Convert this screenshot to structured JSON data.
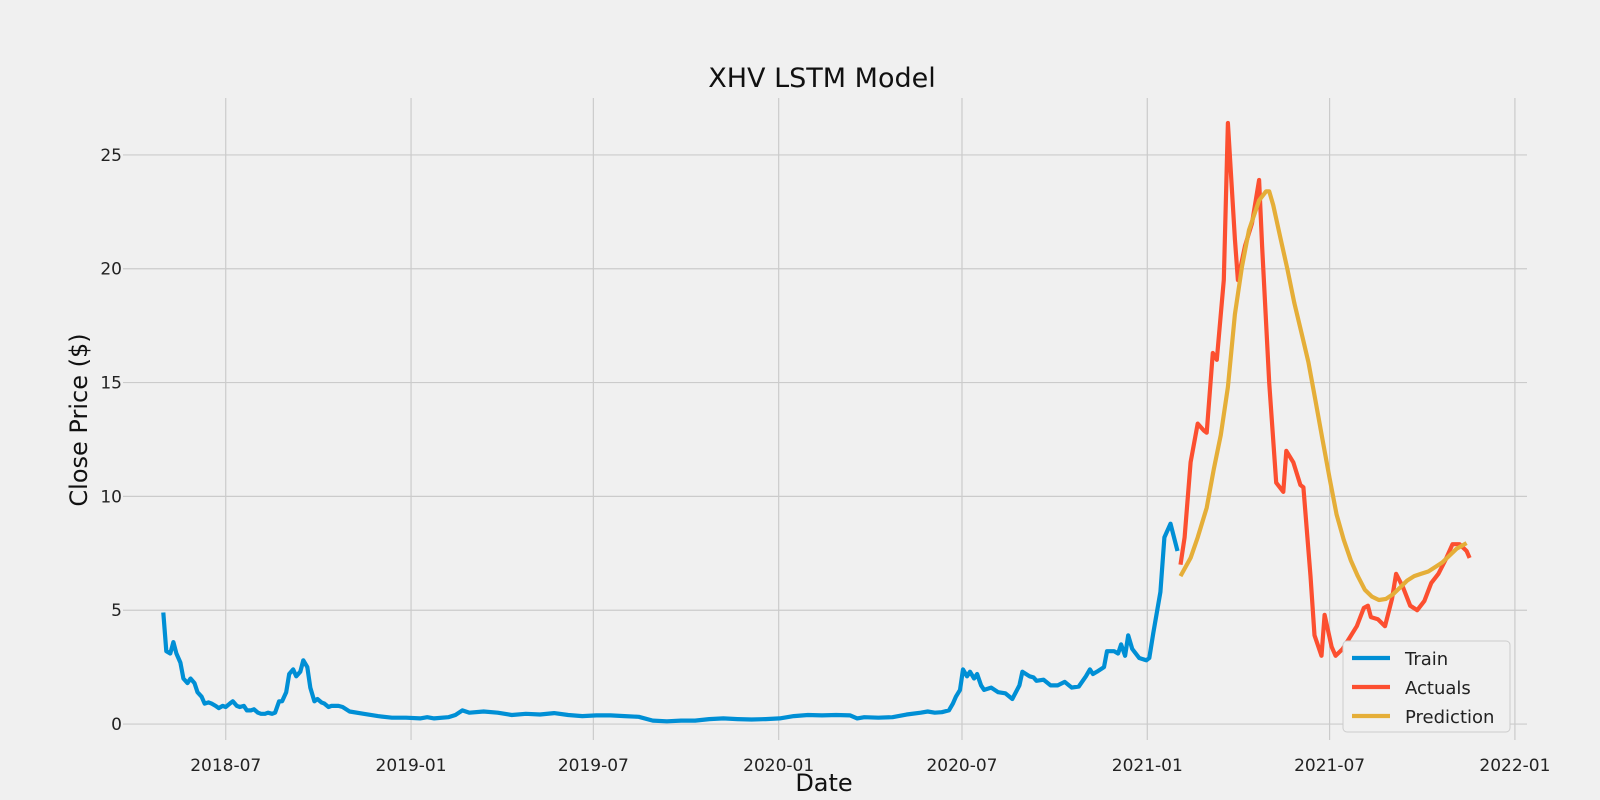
{
  "chart_data": {
    "type": "line",
    "title": "XHV LSTM Model",
    "xlabel": "Date",
    "ylabel": "Close Price ($)",
    "x_ticks": [
      "2018-07",
      "2019-01",
      "2019-07",
      "2020-01",
      "2020-07",
      "2021-01",
      "2021-07",
      "2022-01"
    ],
    "y_ticks": [
      0,
      5,
      10,
      15,
      20,
      25
    ],
    "xlim": [
      "2018-03-21",
      "2022-01-13"
    ],
    "ylim": [
      -0.7,
      27.5
    ],
    "grid": true,
    "legend_position": "lower-right",
    "series": [
      {
        "name": "Train",
        "color": "#008fd5",
        "points": [
          [
            "2018-04-30",
            4.9
          ],
          [
            "2018-05-03",
            3.2
          ],
          [
            "2018-05-07",
            3.1
          ],
          [
            "2018-05-10",
            3.6
          ],
          [
            "2018-05-13",
            3.1
          ],
          [
            "2018-05-17",
            2.7
          ],
          [
            "2018-05-20",
            2.0
          ],
          [
            "2018-05-24",
            1.8
          ],
          [
            "2018-05-27",
            2.0
          ],
          [
            "2018-05-31",
            1.8
          ],
          [
            "2018-06-03",
            1.4
          ],
          [
            "2018-06-07",
            1.2
          ],
          [
            "2018-06-10",
            0.9
          ],
          [
            "2018-06-14",
            0.95
          ],
          [
            "2018-06-17",
            0.9
          ],
          [
            "2018-06-21",
            0.8
          ],
          [
            "2018-06-24",
            0.7
          ],
          [
            "2018-06-28",
            0.8
          ],
          [
            "2018-07-01",
            0.75
          ],
          [
            "2018-07-05",
            0.9
          ],
          [
            "2018-07-08",
            1.0
          ],
          [
            "2018-07-12",
            0.8
          ],
          [
            "2018-07-15",
            0.75
          ],
          [
            "2018-07-19",
            0.8
          ],
          [
            "2018-07-22",
            0.6
          ],
          [
            "2018-07-26",
            0.6
          ],
          [
            "2018-07-29",
            0.65
          ],
          [
            "2018-08-02",
            0.5
          ],
          [
            "2018-08-05",
            0.45
          ],
          [
            "2018-08-09",
            0.45
          ],
          [
            "2018-08-12",
            0.5
          ],
          [
            "2018-08-16",
            0.45
          ],
          [
            "2018-08-19",
            0.5
          ],
          [
            "2018-08-23",
            1.0
          ],
          [
            "2018-08-26",
            1.0
          ],
          [
            "2018-08-30",
            1.4
          ],
          [
            "2018-09-02",
            2.2
          ],
          [
            "2018-09-06",
            2.4
          ],
          [
            "2018-09-09",
            2.1
          ],
          [
            "2018-09-13",
            2.3
          ],
          [
            "2018-09-16",
            2.8
          ],
          [
            "2018-09-20",
            2.5
          ],
          [
            "2018-09-23",
            1.6
          ],
          [
            "2018-09-27",
            1.0
          ],
          [
            "2018-09-30",
            1.1
          ],
          [
            "2018-10-04",
            0.95
          ],
          [
            "2018-10-07",
            0.9
          ],
          [
            "2018-10-11",
            0.75
          ],
          [
            "2018-10-14",
            0.8
          ],
          [
            "2018-10-18",
            0.8
          ],
          [
            "2018-10-21",
            0.8
          ],
          [
            "2018-10-25",
            0.75
          ],
          [
            "2018-11-01",
            0.55
          ],
          [
            "2018-11-15",
            0.45
          ],
          [
            "2018-11-29",
            0.35
          ],
          [
            "2018-12-13",
            0.28
          ],
          [
            "2018-12-27",
            0.28
          ],
          [
            "2019-01-10",
            0.25
          ],
          [
            "2019-01-17",
            0.3
          ],
          [
            "2019-01-24",
            0.25
          ],
          [
            "2019-02-07",
            0.3
          ],
          [
            "2019-02-14",
            0.4
          ],
          [
            "2019-02-21",
            0.6
          ],
          [
            "2019-02-28",
            0.5
          ],
          [
            "2019-03-14",
            0.55
          ],
          [
            "2019-03-28",
            0.5
          ],
          [
            "2019-04-11",
            0.4
          ],
          [
            "2019-04-25",
            0.45
          ],
          [
            "2019-05-09",
            0.42
          ],
          [
            "2019-05-23",
            0.48
          ],
          [
            "2019-06-06",
            0.4
          ],
          [
            "2019-06-20",
            0.35
          ],
          [
            "2019-07-04",
            0.38
          ],
          [
            "2019-07-18",
            0.38
          ],
          [
            "2019-08-01",
            0.35
          ],
          [
            "2019-08-15",
            0.32
          ],
          [
            "2019-08-29",
            0.15
          ],
          [
            "2019-09-12",
            0.12
          ],
          [
            "2019-09-26",
            0.15
          ],
          [
            "2019-10-10",
            0.15
          ],
          [
            "2019-10-24",
            0.22
          ],
          [
            "2019-11-07",
            0.25
          ],
          [
            "2019-11-21",
            0.22
          ],
          [
            "2019-12-05",
            0.2
          ],
          [
            "2019-12-19",
            0.22
          ],
          [
            "2020-01-02",
            0.25
          ],
          [
            "2020-01-16",
            0.35
          ],
          [
            "2020-01-30",
            0.4
          ],
          [
            "2020-02-13",
            0.38
          ],
          [
            "2020-02-27",
            0.4
          ],
          [
            "2020-03-12",
            0.38
          ],
          [
            "2020-03-19",
            0.25
          ],
          [
            "2020-03-26",
            0.3
          ],
          [
            "2020-04-09",
            0.28
          ],
          [
            "2020-04-23",
            0.3
          ],
          [
            "2020-05-07",
            0.42
          ],
          [
            "2020-05-21",
            0.5
          ],
          [
            "2020-05-28",
            0.55
          ],
          [
            "2020-06-04",
            0.5
          ],
          [
            "2020-06-11",
            0.52
          ],
          [
            "2020-06-18",
            0.6
          ],
          [
            "2020-06-22",
            0.9
          ],
          [
            "2020-06-25",
            1.2
          ],
          [
            "2020-06-29",
            1.5
          ],
          [
            "2020-07-02",
            2.4
          ],
          [
            "2020-07-06",
            2.1
          ],
          [
            "2020-07-09",
            2.3
          ],
          [
            "2020-07-13",
            2.0
          ],
          [
            "2020-07-16",
            2.2
          ],
          [
            "2020-07-20",
            1.7
          ],
          [
            "2020-07-23",
            1.5
          ],
          [
            "2020-07-30",
            1.6
          ],
          [
            "2020-08-06",
            1.4
          ],
          [
            "2020-08-13",
            1.35
          ],
          [
            "2020-08-20",
            1.1
          ],
          [
            "2020-08-27",
            1.7
          ],
          [
            "2020-08-30",
            2.3
          ],
          [
            "2020-09-06",
            2.1
          ],
          [
            "2020-09-10",
            2.05
          ],
          [
            "2020-09-13",
            1.9
          ],
          [
            "2020-09-20",
            1.95
          ],
          [
            "2020-09-27",
            1.7
          ],
          [
            "2020-10-04",
            1.7
          ],
          [
            "2020-10-11",
            1.85
          ],
          [
            "2020-10-18",
            1.6
          ],
          [
            "2020-10-25",
            1.65
          ],
          [
            "2020-11-01",
            2.1
          ],
          [
            "2020-11-05",
            2.4
          ],
          [
            "2020-11-08",
            2.2
          ],
          [
            "2020-11-12",
            2.3
          ],
          [
            "2020-11-19",
            2.5
          ],
          [
            "2020-11-22",
            3.2
          ],
          [
            "2020-11-29",
            3.2
          ],
          [
            "2020-12-03",
            3.1
          ],
          [
            "2020-12-06",
            3.5
          ],
          [
            "2020-12-10",
            3.0
          ],
          [
            "2020-12-13",
            3.9
          ],
          [
            "2020-12-17",
            3.3
          ],
          [
            "2020-12-24",
            2.9
          ],
          [
            "2020-12-31",
            2.8
          ],
          [
            "2021-01-03",
            2.9
          ],
          [
            "2021-01-07",
            4.0
          ],
          [
            "2021-01-14",
            5.8
          ],
          [
            "2021-01-18",
            8.2
          ],
          [
            "2021-01-24",
            8.8
          ],
          [
            "2021-01-31",
            7.6
          ]
        ]
      },
      {
        "name": "Actuals",
        "color": "#fc4f30",
        "points": [
          [
            "2021-02-03",
            7.0
          ],
          [
            "2021-02-07",
            8.2
          ],
          [
            "2021-02-13",
            11.5
          ],
          [
            "2021-02-20",
            13.2
          ],
          [
            "2021-02-26",
            12.9
          ],
          [
            "2021-03-01",
            12.8
          ],
          [
            "2021-03-07",
            16.3
          ],
          [
            "2021-03-11",
            16.0
          ],
          [
            "2021-03-18",
            19.5
          ],
          [
            "2021-03-22",
            26.4
          ],
          [
            "2021-03-29",
            21.3
          ],
          [
            "2021-04-01",
            19.5
          ],
          [
            "2021-04-08",
            21.0
          ],
          [
            "2021-04-15",
            22.0
          ],
          [
            "2021-04-22",
            23.9
          ],
          [
            "2021-04-25",
            21.0
          ],
          [
            "2021-05-02",
            15.0
          ],
          [
            "2021-05-09",
            10.6
          ],
          [
            "2021-05-16",
            10.2
          ],
          [
            "2021-05-19",
            12.0
          ],
          [
            "2021-05-26",
            11.5
          ],
          [
            "2021-06-02",
            10.5
          ],
          [
            "2021-06-05",
            10.4
          ],
          [
            "2021-06-12",
            6.5
          ],
          [
            "2021-06-16",
            3.9
          ],
          [
            "2021-06-23",
            3.0
          ],
          [
            "2021-06-26",
            4.8
          ],
          [
            "2021-07-03",
            3.4
          ],
          [
            "2021-07-07",
            3.0
          ],
          [
            "2021-07-14",
            3.3
          ],
          [
            "2021-07-21",
            3.8
          ],
          [
            "2021-07-28",
            4.3
          ],
          [
            "2021-08-04",
            5.1
          ],
          [
            "2021-08-08",
            5.2
          ],
          [
            "2021-08-11",
            4.7
          ],
          [
            "2021-08-18",
            4.6
          ],
          [
            "2021-08-25",
            4.3
          ],
          [
            "2021-09-01",
            5.5
          ],
          [
            "2021-09-05",
            6.6
          ],
          [
            "2021-09-12",
            6.0
          ],
          [
            "2021-09-19",
            5.2
          ],
          [
            "2021-09-26",
            5.0
          ],
          [
            "2021-10-03",
            5.4
          ],
          [
            "2021-10-10",
            6.2
          ],
          [
            "2021-10-17",
            6.6
          ],
          [
            "2021-10-24",
            7.2
          ],
          [
            "2021-10-31",
            7.9
          ],
          [
            "2021-11-07",
            7.9
          ],
          [
            "2021-11-14",
            7.6
          ],
          [
            "2021-11-17",
            7.3
          ]
        ]
      },
      {
        "name": "Prediction",
        "color": "#e5ae38",
        "points": [
          [
            "2021-02-03",
            6.5
          ],
          [
            "2021-02-13",
            7.3
          ],
          [
            "2021-02-20",
            8.2
          ],
          [
            "2021-03-01",
            9.5
          ],
          [
            "2021-03-08",
            11.2
          ],
          [
            "2021-03-15",
            12.7
          ],
          [
            "2021-03-22",
            14.8
          ],
          [
            "2021-03-29",
            18.0
          ],
          [
            "2021-04-05",
            20.1
          ],
          [
            "2021-04-12",
            21.7
          ],
          [
            "2021-04-22",
            23.0
          ],
          [
            "2021-04-29",
            23.4
          ],
          [
            "2021-05-02",
            23.4
          ],
          [
            "2021-05-06",
            22.8
          ],
          [
            "2021-05-13",
            21.4
          ],
          [
            "2021-05-20",
            20.0
          ],
          [
            "2021-05-27",
            18.5
          ],
          [
            "2021-06-03",
            17.2
          ],
          [
            "2021-06-10",
            15.9
          ],
          [
            "2021-06-17",
            14.2
          ],
          [
            "2021-06-24",
            12.5
          ],
          [
            "2021-07-01",
            10.8
          ],
          [
            "2021-07-08",
            9.2
          ],
          [
            "2021-07-15",
            8.1
          ],
          [
            "2021-07-22",
            7.2
          ],
          [
            "2021-07-29",
            6.5
          ],
          [
            "2021-08-05",
            5.9
          ],
          [
            "2021-08-12",
            5.6
          ],
          [
            "2021-08-19",
            5.45
          ],
          [
            "2021-08-26",
            5.5
          ],
          [
            "2021-09-02",
            5.7
          ],
          [
            "2021-09-09",
            6.0
          ],
          [
            "2021-09-16",
            6.3
          ],
          [
            "2021-09-23",
            6.5
          ],
          [
            "2021-09-30",
            6.6
          ],
          [
            "2021-10-07",
            6.7
          ],
          [
            "2021-10-14",
            6.9
          ],
          [
            "2021-10-21",
            7.1
          ],
          [
            "2021-10-28",
            7.4
          ],
          [
            "2021-11-04",
            7.7
          ],
          [
            "2021-11-14",
            7.95
          ]
        ]
      }
    ]
  }
}
